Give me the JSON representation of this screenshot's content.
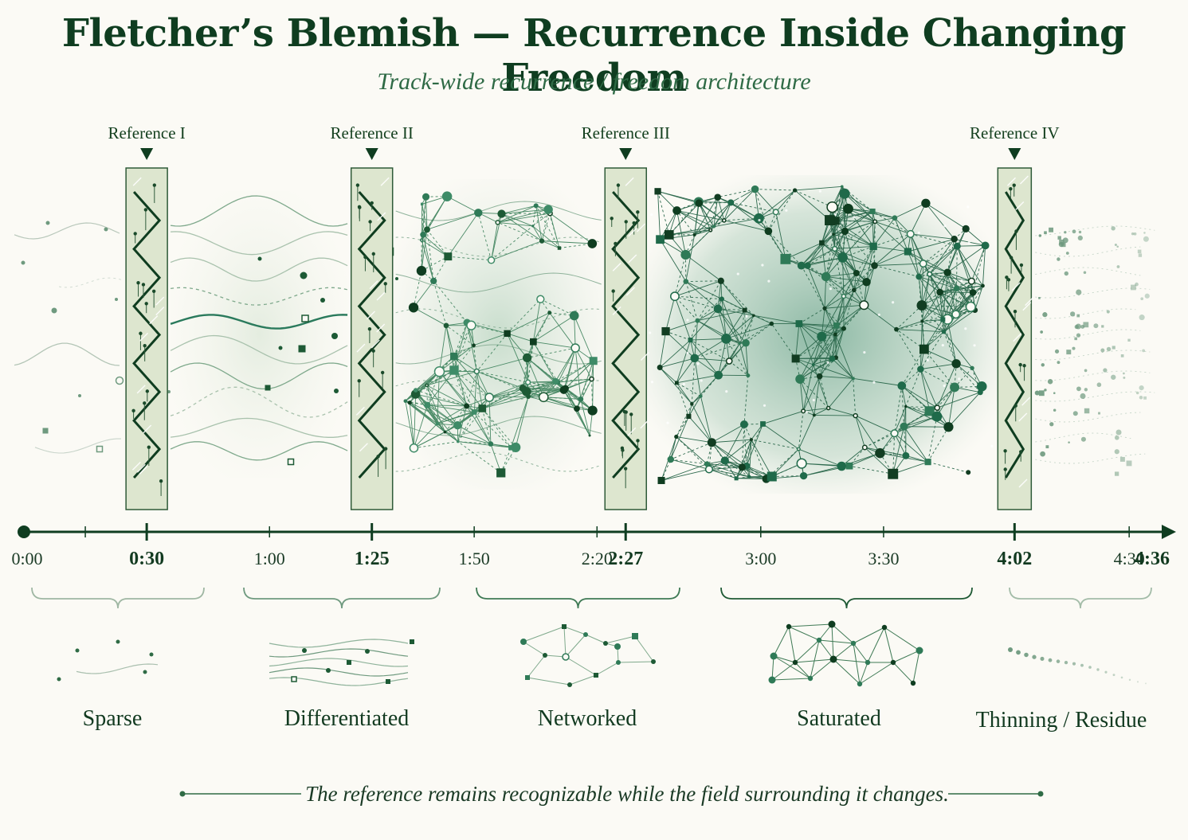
{
  "title": "Fletcher’s Blemish — Recurrence Inside Changing Freedom",
  "subtitle": "Track-wide recurrence / freedom architecture",
  "timeline": {
    "start": 0,
    "end": 276,
    "labels": [
      {
        "t": 0,
        "text": "0:00",
        "emphasis": false
      },
      {
        "t": 30,
        "text": "0:30",
        "emphasis": true
      },
      {
        "t": 60,
        "text": "1:00",
        "emphasis": false
      },
      {
        "t": 85,
        "text": "1:25",
        "emphasis": true
      },
      {
        "t": 110,
        "text": "1:50",
        "emphasis": false
      },
      {
        "t": 140,
        "text": "2:20",
        "emphasis": false
      },
      {
        "t": 147,
        "text": "2:27",
        "emphasis": true
      },
      {
        "t": 180,
        "text": "3:00",
        "emphasis": false
      },
      {
        "t": 210,
        "text": "3:30",
        "emphasis": false
      },
      {
        "t": 242,
        "text": "4:02",
        "emphasis": true
      },
      {
        "t": 270,
        "text": "4:30",
        "emphasis": false
      },
      {
        "t": 276,
        "text": "4:36",
        "emphasis": true
      }
    ],
    "minor_ticks": [
      30,
      60,
      110,
      140,
      180,
      210,
      270
    ]
  },
  "references": [
    {
      "label": "Reference I",
      "t": 30
    },
    {
      "label": "Reference II",
      "t": 85
    },
    {
      "label": "Reference III",
      "t": 147
    },
    {
      "label": "Reference IV",
      "t": 242
    }
  ],
  "phases": [
    {
      "label": "Sparse",
      "density": 0.1
    },
    {
      "label": "Differentiated",
      "density": 0.35
    },
    {
      "label": "Networked",
      "density": 0.65
    },
    {
      "label": "Saturated",
      "density": 1.0
    },
    {
      "label": "Thinning / Residue",
      "density": 0.25
    }
  ],
  "caption": "The reference remains recognizable while the field surrounding it changes.",
  "colors": {
    "dark": "#0f3d20",
    "mid": "#2f7a57",
    "light": "#7fae90",
    "pale": "#dfe8d3",
    "band": "#dde6cf"
  }
}
